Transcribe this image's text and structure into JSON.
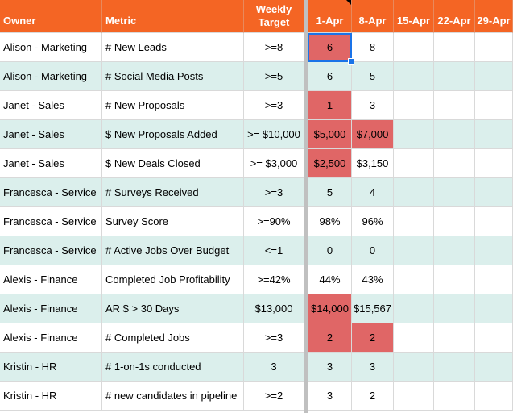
{
  "colors": {
    "header_bg": "#f46524",
    "band_bg": "#dbefec",
    "white_bg": "#ffffff",
    "flag_red": "#e06666",
    "selection": "#1a73e8"
  },
  "header": {
    "owner": "Owner",
    "metric": "Metric",
    "target": "Weekly Target",
    "dates": [
      "1-Apr",
      "8-Apr",
      "15-Apr",
      "22-Apr",
      "29-Apr"
    ]
  },
  "rows": [
    {
      "owner": "Alison - Marketing",
      "metric": "# New Leads",
      "target": ">=8",
      "band": false,
      "v1": "6",
      "v2": "8",
      "r1": true,
      "r2": false
    },
    {
      "owner": "Alison - Marketing",
      "metric": "# Social Media Posts",
      "target": ">=5",
      "band": true,
      "v1": "6",
      "v2": "5",
      "r1": false,
      "r2": false
    },
    {
      "owner": "Janet - Sales",
      "metric": "# New Proposals",
      "target": ">=3",
      "band": false,
      "v1": "1",
      "v2": "3",
      "r1": true,
      "r2": false
    },
    {
      "owner": "Janet - Sales",
      "metric": "$ New Proposals Added",
      "target": ">= $10,000",
      "band": true,
      "v1": "$5,000",
      "v2": "$7,000",
      "r1": true,
      "r2": true
    },
    {
      "owner": "Janet - Sales",
      "metric": "$ New Deals Closed",
      "target": ">= $3,000",
      "band": false,
      "v1": "$2,500",
      "v2": "$3,150",
      "r1": true,
      "r2": false
    },
    {
      "owner": "Francesca - Service",
      "metric": "# Surveys Received",
      "target": ">=3",
      "band": true,
      "v1": "5",
      "v2": "4",
      "r1": false,
      "r2": false
    },
    {
      "owner": "Francesca - Service",
      "metric": "Survey Score",
      "target": ">=90%",
      "band": false,
      "v1": "98%",
      "v2": "96%",
      "r1": false,
      "r2": false
    },
    {
      "owner": "Francesca - Service",
      "metric": "# Active Jobs Over Budget",
      "target": "<=1",
      "band": true,
      "v1": "0",
      "v2": "0",
      "r1": false,
      "r2": false
    },
    {
      "owner": "Alexis - Finance",
      "metric": "Completed Job Profitability",
      "target": ">=42%",
      "band": false,
      "v1": "44%",
      "v2": "43%",
      "r1": false,
      "r2": false
    },
    {
      "owner": "Alexis - Finance",
      "metric": "AR $ > 30 Days",
      "target": "$13,000",
      "band": true,
      "v1": "$14,000",
      "v2": "$15,567",
      "r1": true,
      "r2": false
    },
    {
      "owner": "Alexis - Finance",
      "metric": "# Completed Jobs",
      "target": ">=3",
      "band": false,
      "v1": "2",
      "v2": "2",
      "r1": true,
      "r2": true
    },
    {
      "owner": "Kristin - HR",
      "metric": "# 1-on-1s conducted",
      "target": "3",
      "band": true,
      "v1": "3",
      "v2": "3",
      "r1": false,
      "r2": false
    },
    {
      "owner": "Kristin - HR",
      "metric": "# new candidates in pipeline",
      "target": ">=2",
      "band": false,
      "v1": "3",
      "v2": "2",
      "r1": false,
      "r2": false
    }
  ]
}
